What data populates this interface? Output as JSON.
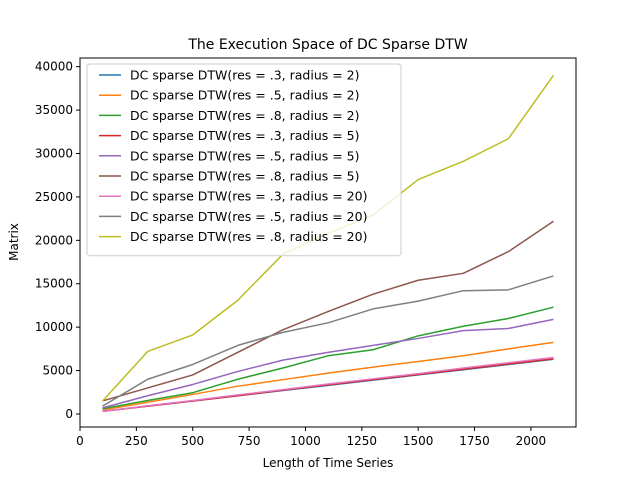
{
  "chart_data": {
    "type": "line",
    "title": "The Execution Space of DC Sparse DTW",
    "xlabel": "Length of Time Series",
    "ylabel": "Matrix",
    "xlim": [
      0,
      2200
    ],
    "ylim": [
      -1500,
      41000
    ],
    "xticks": [
      0,
      250,
      500,
      750,
      1000,
      1250,
      1500,
      1750,
      2000
    ],
    "yticks": [
      0,
      5000,
      10000,
      15000,
      20000,
      25000,
      30000,
      35000,
      40000
    ],
    "x": [
      100,
      300,
      500,
      700,
      900,
      1100,
      1300,
      1500,
      1700,
      1900,
      2100
    ],
    "grid": false,
    "legend_position": "upper-left",
    "series": [
      {
        "name": "DC sparse DTW(res = .3, radius = 2)",
        "color": "#1f77b4",
        "values": [
          300,
          900,
          1500,
          2100,
          2700,
          3300,
          3900,
          4500,
          5100,
          5700,
          6300
        ]
      },
      {
        "name": "DC sparse DTW(res = .5, radius = 2)",
        "color": "#ff7f0e",
        "values": [
          450,
          1350,
          2250,
          3200,
          3950,
          4700,
          5400,
          6050,
          6700,
          7500,
          8250
        ]
      },
      {
        "name": "DC sparse DTW(res = .8, radius = 2)",
        "color": "#2ca02c",
        "values": [
          600,
          1550,
          2450,
          4000,
          5300,
          6700,
          7400,
          9000,
          10100,
          11000,
          12300
        ]
      },
      {
        "name": "DC sparse DTW(res = .3, radius = 5)",
        "color": "#d62728",
        "values": [
          300,
          900,
          1500,
          2100,
          2750,
          3350,
          3950,
          4550,
          5150,
          5750,
          6350
        ]
      },
      {
        "name": "DC sparse DTW(res = .5, radius = 5)",
        "color": "#9467bd",
        "values": [
          700,
          2100,
          3400,
          4900,
          6200,
          7100,
          7900,
          8700,
          9600,
          9850,
          10900
        ]
      },
      {
        "name": "DC sparse DTW(res = .8, radius = 5)",
        "color": "#8c564b",
        "values": [
          1500,
          3000,
          4500,
          7100,
          9700,
          11800,
          13800,
          15400,
          16200,
          18700,
          22200
        ]
      },
      {
        "name": "DC sparse DTW(res = .3, radius = 20)",
        "color": "#e377c2",
        "values": [
          300,
          950,
          1550,
          2200,
          2800,
          3450,
          4050,
          4650,
          5300,
          5900,
          6500
        ]
      },
      {
        "name": "DC sparse DTW(res = .5, radius = 20)",
        "color": "#7f7f7f",
        "values": [
          900,
          4000,
          5700,
          7900,
          9400,
          10500,
          12100,
          13000,
          14200,
          14300,
          15900
        ]
      },
      {
        "name": "DC sparse DTW(res = .8, radius = 20)",
        "color": "#bcbd22",
        "values": [
          1500,
          7200,
          9100,
          13100,
          18400,
          20800,
          22900,
          27000,
          29100,
          31700,
          39000
        ]
      }
    ]
  }
}
